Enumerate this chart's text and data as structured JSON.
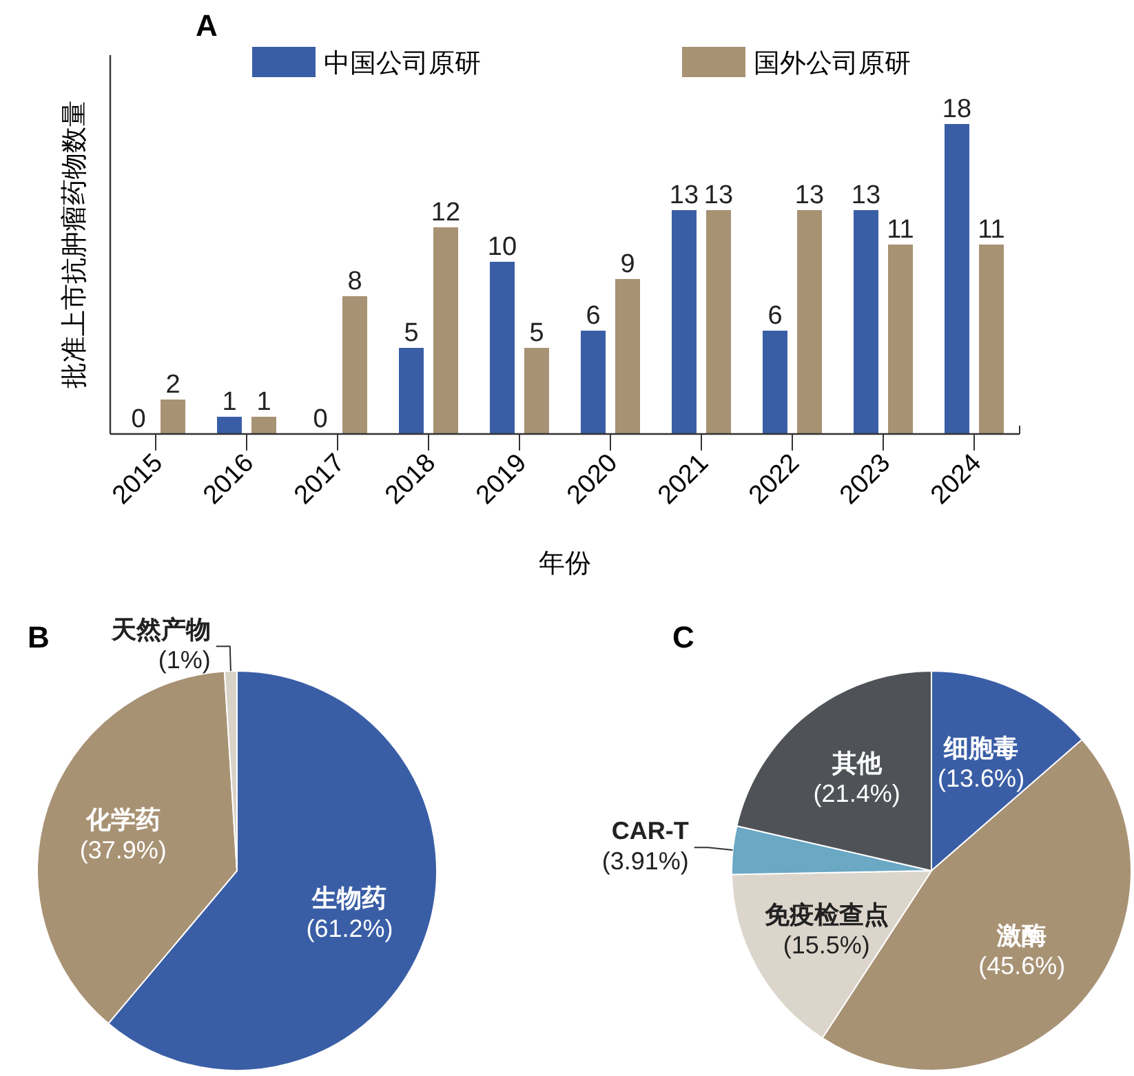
{
  "chart_data": [
    {
      "type": "bar",
      "title": "A",
      "xlabel": "年份",
      "ylabel": "批准上市抗肿瘤药物数量",
      "categories": [
        "2015",
        "2016",
        "2017",
        "2018",
        "2019",
        "2020",
        "2021",
        "2022",
        "2023",
        "2024"
      ],
      "series": [
        {
          "name": "中国公司原研",
          "color": "#3a5ea6",
          "values": [
            0,
            1,
            0,
            5,
            10,
            6,
            13,
            6,
            13,
            18
          ]
        },
        {
          "name": "国外公司原研",
          "color": "#a89274",
          "values": [
            2,
            1,
            8,
            12,
            5,
            9,
            13,
            13,
            11,
            11
          ]
        }
      ],
      "data_labels": true,
      "legend": "top",
      "grid": false
    },
    {
      "type": "pie",
      "title": "B",
      "categories": [
        "生物药",
        "化学药",
        "天然产物"
      ],
      "values": [
        61.2,
        37.9,
        1
      ],
      "value_labels": [
        "(61.2%)",
        "(37.9%)",
        "(1%)"
      ],
      "colors": [
        "#3a5ea6",
        "#a89274",
        "#d9d2c7"
      ]
    },
    {
      "type": "pie",
      "title": "C",
      "categories": [
        "细胞毒",
        "激酶",
        "免疫检查点",
        "CAR-T",
        "其他"
      ],
      "values": [
        13.6,
        45.6,
        15.5,
        3.91,
        21.4
      ],
      "value_labels": [
        "(13.6%)",
        "(45.6%)",
        "(15.5%)",
        "(3.91%)",
        "(21.4%)"
      ],
      "colors": [
        "#3a5ea6",
        "#a89274",
        "#dcd5cb",
        "#6aa8c4",
        "#4f5257"
      ]
    }
  ]
}
